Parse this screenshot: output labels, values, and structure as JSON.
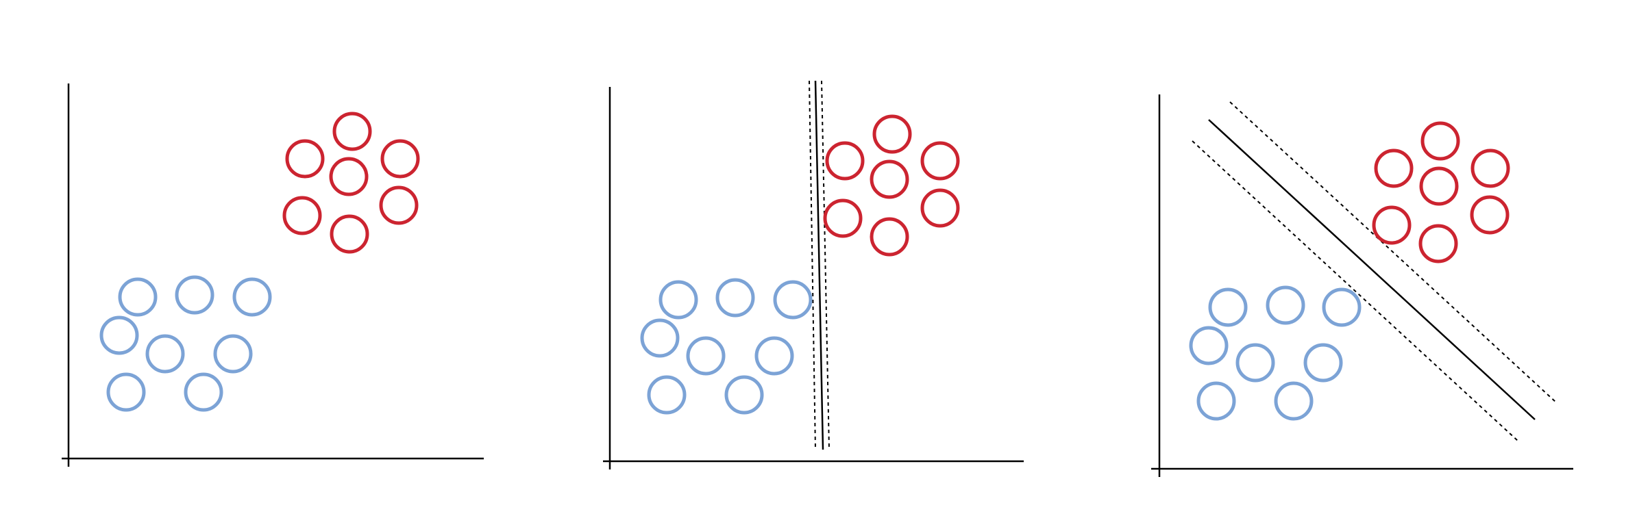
{
  "colors": {
    "background": "#ffffff",
    "axis": "#000000",
    "class_a": "#7ca3d6",
    "class_b": "#cc2430",
    "boundary": "#000000"
  },
  "panels": [
    {
      "class_a_points": 8,
      "class_b_points": 7,
      "decision_boundary": "none",
      "margin_lines": "none"
    },
    {
      "class_a_points": 8,
      "class_b_points": 7,
      "decision_boundary": "solid",
      "margin_lines": "dotted"
    },
    {
      "class_a_points": 8,
      "class_b_points": 7,
      "decision_boundary": "solid",
      "margin_lines": "dotted"
    }
  ]
}
